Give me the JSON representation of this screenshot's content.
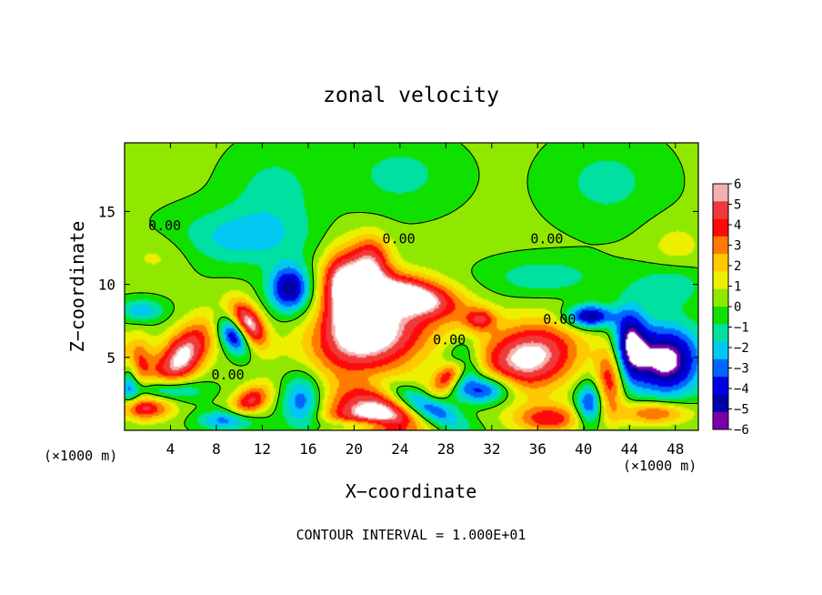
{
  "chart_data": {
    "type": "heatmap",
    "title": "zonal velocity",
    "xlabel": "X−coordinate",
    "ylabel": "Z−coordinate",
    "x_unit_left": "(×1000 m)",
    "x_unit_right": "(×1000 m)",
    "footer": "CONTOUR INTERVAL = 1.000E+01",
    "xlim": [
      0,
      50
    ],
    "ylim": [
      0,
      19.7
    ],
    "x_ticks": [
      4,
      8,
      12,
      16,
      20,
      24,
      28,
      32,
      36,
      40,
      44,
      48
    ],
    "x_tick_labels": [
      "4",
      "8",
      "12",
      "16",
      "20",
      "24",
      "28",
      "32",
      "36",
      "40",
      "44",
      "48"
    ],
    "y_ticks": [
      5,
      10,
      15
    ],
    "y_tick_labels": [
      "5",
      "10",
      "15"
    ],
    "colorbar": {
      "levels": [
        6,
        5,
        4,
        3,
        2,
        1,
        0,
        -1,
        -2,
        -3,
        -4,
        -5,
        -6
      ],
      "labels": [
        "6",
        "5",
        "4",
        "3",
        "2",
        "1",
        "0",
        "−1",
        "−2",
        "−3",
        "−4",
        "−5",
        "−6"
      ],
      "colors": [
        "#f4b0b0",
        "#f03a3a",
        "#ff0a0a",
        "#ff7a00",
        "#ffc800",
        "#ecf000",
        "#90e800",
        "#10e000",
        "#00e0a0",
        "#00c8f0",
        "#0066ff",
        "#0000e6",
        "#0000aa",
        "#7a00a8"
      ]
    },
    "contour_labels": [
      {
        "text": "0.00",
        "x": 3.5,
        "z": 13.7
      },
      {
        "text": "0.00",
        "x": 23.9,
        "z": 12.8
      },
      {
        "text": "0.00",
        "x": 36.8,
        "z": 12.8
      },
      {
        "text": "0.00",
        "x": 37.9,
        "z": 7.3
      },
      {
        "text": "0.00",
        "x": 28.3,
        "z": 5.9
      },
      {
        "text": "0.00",
        "x": 9.0,
        "z": 3.5
      }
    ],
    "blobs": [
      {
        "value": 6.8,
        "x": 5.0,
        "z": 5.0,
        "rx": 3.2,
        "rz": 1.6,
        "rot": 40
      },
      {
        "value": 6.5,
        "x": 0.6,
        "z": 4.6,
        "rx": 1.5,
        "rz": 1.8,
        "rot": 0
      },
      {
        "value": 6.8,
        "x": 10.8,
        "z": 7.3,
        "rx": 1.9,
        "rz": 1.1,
        "rot": -45
      },
      {
        "value": 7.5,
        "x": 21.5,
        "z": 6.5,
        "rx": 5.2,
        "rz": 2.6,
        "rot": 10
      },
      {
        "value": 6.3,
        "x": 24.8,
        "z": 9.3,
        "rx": 4.5,
        "rz": 1.3,
        "rot": -10
      },
      {
        "value": 7.0,
        "x": 35.2,
        "z": 5.0,
        "rx": 4.4,
        "rz": 2.3,
        "rot": 8
      },
      {
        "value": 6.5,
        "x": 28.7,
        "z": 4.0,
        "rx": 2.0,
        "rz": 0.9,
        "rot": 35
      },
      {
        "value": 7.5,
        "x": 22.0,
        "z": 1.0,
        "rx": 4.5,
        "rz": 2.0,
        "rot": 0
      },
      {
        "value": 6.4,
        "x": 19.0,
        "z": 9.8,
        "rx": 1.9,
        "rz": 2.6,
        "rot": 0
      },
      {
        "value": 5.0,
        "x": 21.5,
        "z": 11.6,
        "rx": 1.7,
        "rz": 1.8,
        "rot": 0
      },
      {
        "value": 4.5,
        "x": 1.5,
        "z": 1.5,
        "rx": 2.5,
        "rz": 0.8,
        "rot": 0
      },
      {
        "value": 5.0,
        "x": 11.0,
        "z": 2.0,
        "rx": 1.8,
        "rz": 1.0,
        "rot": 20
      },
      {
        "value": 5.0,
        "x": 42.3,
        "z": 3.5,
        "rx": 1.2,
        "rz": 2.4,
        "rot": 0
      },
      {
        "value": 4.5,
        "x": 37.0,
        "z": 0.8,
        "rx": 3.0,
        "rz": 1.0,
        "rot": 0
      },
      {
        "value": 4.2,
        "x": 46.2,
        "z": 1.2,
        "rx": 3.0,
        "rz": 0.8,
        "rot": 0
      },
      {
        "value": 3.8,
        "x": 31.0,
        "z": 7.6,
        "rx": 1.4,
        "rz": 0.8,
        "rot": 0
      },
      {
        "value": -7.5,
        "x": 47.2,
        "z": 4.8,
        "rx": 3.0,
        "rz": 2.4,
        "rot": 0
      },
      {
        "value": -6.5,
        "x": 26.0,
        "z": 1.7,
        "rx": 3.6,
        "rz": 1.0,
        "rot": -20
      },
      {
        "value": -6.5,
        "x": 29.5,
        "z": 4.6,
        "rx": 1.5,
        "rz": 1.2,
        "rot": 30
      },
      {
        "value": -6.0,
        "x": 9.5,
        "z": 6.5,
        "rx": 1.5,
        "rz": 1.0,
        "rot": -40
      },
      {
        "value": -6.2,
        "x": 14.4,
        "z": 9.7,
        "rx": 1.8,
        "rz": 1.6,
        "rot": 0
      },
      {
        "value": -6.0,
        "x": 0.4,
        "z": 3.8,
        "rx": 0.9,
        "rz": 2.0,
        "rot": 0
      },
      {
        "value": -5.8,
        "x": 31.2,
        "z": 2.8,
        "rx": 2.5,
        "rz": 1.0,
        "rot": 0
      },
      {
        "value": -6.5,
        "x": 40.5,
        "z": 7.8,
        "rx": 2.0,
        "rz": 0.8,
        "rot": 0
      },
      {
        "value": -6.0,
        "x": 44.0,
        "z": 6.0,
        "rx": 1.5,
        "rz": 2.5,
        "rot": 0
      },
      {
        "value": -5.0,
        "x": 40.5,
        "z": 1.8,
        "rx": 1.2,
        "rz": 1.5,
        "rot": 0
      },
      {
        "value": -4.5,
        "x": 15.5,
        "z": 2.0,
        "rx": 1.8,
        "rz": 2.0,
        "rot": 0
      },
      {
        "value": -4.5,
        "x": 3.5,
        "z": 2.8,
        "rx": 3.0,
        "rz": 0.8,
        "rot": 0
      },
      {
        "value": -4.0,
        "x": 9.0,
        "z": 0.7,
        "rx": 2.5,
        "rz": 0.7,
        "rot": 0
      },
      {
        "value": -4.5,
        "x": 20.5,
        "z": 0.3,
        "rx": 3.0,
        "rz": 0.5,
        "rot": 0
      },
      {
        "value": -3.0,
        "x": 1.5,
        "z": 8.2,
        "rx": 2.0,
        "rz": 0.8,
        "rot": 0
      },
      {
        "value": -2.6,
        "x": 10.0,
        "z": 13.2,
        "rx": 6.0,
        "rz": 2.0,
        "rot": 0
      },
      {
        "value": -2.0,
        "x": 36.5,
        "z": 10.5,
        "rx": 5.0,
        "rz": 1.3,
        "rot": 0
      },
      {
        "value": -2.2,
        "x": 47.5,
        "z": 10.0,
        "rx": 3.0,
        "rz": 1.5,
        "rot": 0
      },
      {
        "value": -1.6,
        "x": 13.0,
        "z": 16.5,
        "rx": 4.0,
        "rz": 3.0,
        "rot": 0
      },
      {
        "value": -1.6,
        "x": 24.0,
        "z": 17.5,
        "rx": 5.0,
        "rz": 2.5,
        "rot": 0
      },
      {
        "value": -1.6,
        "x": 42.0,
        "z": 17.0,
        "rx": 5.0,
        "rz": 3.0,
        "rot": 0
      },
      {
        "value": 1.2,
        "x": 3.0,
        "z": 12.0,
        "rx": 3.0,
        "rz": 1.5,
        "rot": 0
      },
      {
        "value": 1.3,
        "x": 48.0,
        "z": 12.5,
        "rx": 2.5,
        "rz": 1.8,
        "rot": 0
      }
    ]
  }
}
